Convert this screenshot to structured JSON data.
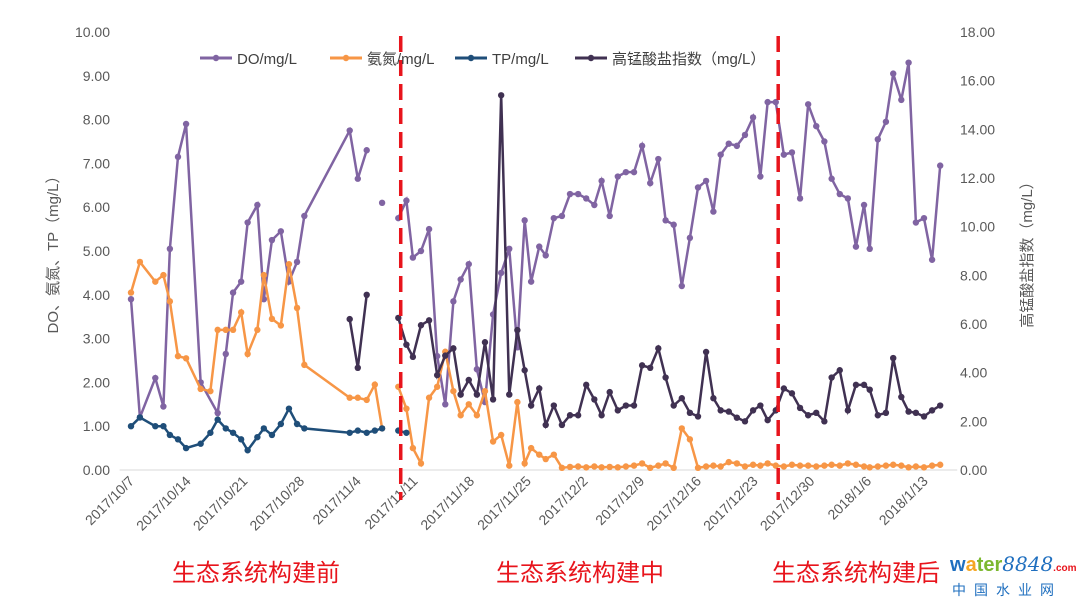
{
  "chart_data": {
    "type": "line",
    "x_unit": "days since 2017/10/7",
    "x_ticks": [
      0,
      7,
      14,
      21,
      28,
      35,
      42,
      49,
      56,
      63,
      70,
      77,
      84,
      91,
      98
    ],
    "x_tick_labels": [
      "2017/10/7",
      "2017/10/14",
      "2017/10/21",
      "2017/10/28",
      "2017/11/4",
      "2017/11/11",
      "2017/11/18",
      "2017/11/25",
      "2017/12/2",
      "2017/12/9",
      "2017/12/16",
      "2017/12/23",
      "2017/12/30",
      "2018/1/6",
      "2018/1/13"
    ],
    "xlim": [
      -1.4,
      102
    ],
    "ylabel": "DO、氨氮、TP（mg/L）",
    "ylim": [
      0,
      10
    ],
    "y_ticks": [
      "0.00",
      "1.00",
      "2.00",
      "3.00",
      "4.00",
      "5.00",
      "6.00",
      "7.00",
      "8.00",
      "9.00",
      "10.00"
    ],
    "y2label": "高锰酸盐指数（mg/L）",
    "y2lim": [
      0,
      18
    ],
    "y2_ticks": [
      "0.00",
      "2.00",
      "4.00",
      "6.00",
      "8.00",
      "10.00",
      "12.00",
      "14.00",
      "16.00",
      "18.00"
    ],
    "legend_position": "top",
    "phase_boundaries": [
      33.3,
      79.9
    ],
    "phase_labels": [
      "生态系统构建前",
      "生态系统构建中",
      "生态系统构建后"
    ],
    "series": [
      {
        "name": "DO/mg/L",
        "axis": "left",
        "color": "#8064a2",
        "points": [
          [
            0,
            3.9
          ],
          [
            1.1,
            1.2
          ],
          [
            3,
            2.1
          ],
          [
            4,
            1.45
          ],
          [
            4.8,
            5.05
          ],
          [
            5.8,
            7.15
          ],
          [
            6.8,
            7.9
          ],
          [
            8.6,
            2.0
          ],
          [
            10.7,
            1.3
          ],
          [
            11.7,
            2.65
          ],
          [
            12.6,
            4.05
          ],
          [
            13.6,
            4.3
          ],
          [
            14.4,
            5.65
          ],
          [
            15.6,
            6.05
          ],
          [
            16.4,
            3.9
          ],
          [
            17.4,
            5.25
          ],
          [
            18.5,
            5.45
          ],
          [
            19.5,
            4.3
          ],
          [
            20.5,
            4.75
          ],
          [
            21.4,
            5.8
          ],
          [
            27,
            7.75
          ],
          [
            28,
            6.65
          ],
          [
            29.1,
            7.3
          ],
          null,
          [
            31,
            6.1
          ],
          null,
          [
            33,
            5.75
          ],
          [
            34,
            6.15
          ],
          [
            34.8,
            4.85
          ],
          [
            35.8,
            5.0
          ],
          [
            36.8,
            5.5
          ],
          [
            37.8,
            2.6
          ],
          [
            38.8,
            1.5
          ],
          [
            39.8,
            3.85
          ],
          [
            40.7,
            4.35
          ],
          [
            41.7,
            4.7
          ],
          [
            42.7,
            2.3
          ],
          [
            43.7,
            1.55
          ],
          [
            44.7,
            3.55
          ],
          [
            45.7,
            4.5
          ],
          [
            46.7,
            5.05
          ],
          [
            47.7,
            2.8
          ],
          [
            48.6,
            5.7
          ],
          [
            49.4,
            4.3
          ],
          [
            50.4,
            5.1
          ],
          [
            51.2,
            4.9
          ],
          [
            52.2,
            5.75
          ],
          [
            53.2,
            5.8
          ],
          [
            54.2,
            6.3
          ],
          [
            55.2,
            6.3
          ],
          [
            56.2,
            6.2
          ],
          [
            57.2,
            6.05
          ],
          [
            58.1,
            6.6
          ],
          [
            59.1,
            5.8
          ],
          [
            60.1,
            6.7
          ],
          [
            61.1,
            6.8
          ],
          [
            62.1,
            6.8
          ],
          [
            63.1,
            7.4
          ],
          [
            64.1,
            6.55
          ],
          [
            65.1,
            7.1
          ],
          [
            66,
            5.7
          ],
          [
            67,
            5.6
          ],
          [
            68,
            4.2
          ],
          [
            69,
            5.3
          ],
          [
            70,
            6.45
          ],
          [
            71,
            6.6
          ],
          [
            71.9,
            5.9
          ],
          [
            72.8,
            7.2
          ],
          [
            73.8,
            7.45
          ],
          [
            74.8,
            7.4
          ],
          [
            75.8,
            7.65
          ],
          [
            76.8,
            8.05
          ],
          [
            77.7,
            6.7
          ],
          [
            78.6,
            8.4
          ],
          [
            79.6,
            8.4
          ],
          [
            80.6,
            7.2
          ],
          [
            81.6,
            7.25
          ],
          [
            82.6,
            6.2
          ],
          [
            83.6,
            8.35
          ],
          [
            84.6,
            7.85
          ],
          [
            85.6,
            7.5
          ],
          [
            86.5,
            6.65
          ],
          [
            87.5,
            6.3
          ],
          [
            88.5,
            6.2
          ],
          [
            89.5,
            5.1
          ],
          [
            90.5,
            6.05
          ],
          [
            91.2,
            5.05
          ],
          [
            92.2,
            7.55
          ],
          [
            93.2,
            7.95
          ],
          [
            94.1,
            9.05
          ],
          [
            95.1,
            8.45
          ],
          [
            96,
            9.3
          ],
          [
            96.9,
            5.65
          ],
          [
            97.9,
            5.75
          ],
          [
            98.9,
            4.8
          ],
          [
            99.9,
            6.95
          ]
        ]
      },
      {
        "name": "氨氮/mg/L",
        "axis": "left",
        "color": "#f79646",
        "points": [
          [
            0,
            4.05
          ],
          [
            1.1,
            4.75
          ],
          [
            3,
            4.3
          ],
          [
            4,
            4.45
          ],
          [
            4.8,
            3.85
          ],
          [
            5.8,
            2.6
          ],
          [
            6.8,
            2.55
          ],
          [
            8.6,
            1.85
          ],
          [
            9.8,
            1.8
          ],
          [
            10.7,
            3.2
          ],
          [
            11.7,
            3.2
          ],
          [
            12.6,
            3.2
          ],
          [
            13.6,
            3.6
          ],
          [
            14.4,
            2.65
          ],
          [
            15.6,
            3.2
          ],
          [
            16.4,
            4.45
          ],
          [
            17.4,
            3.45
          ],
          [
            18.5,
            3.3
          ],
          [
            19.5,
            4.7
          ],
          [
            20.5,
            3.7
          ],
          [
            21.4,
            2.4
          ],
          [
            27,
            1.65
          ],
          [
            28,
            1.65
          ],
          [
            29.1,
            1.6
          ],
          [
            30.1,
            1.95
          ],
          [
            31,
            0.95
          ],
          null,
          [
            33,
            1.9
          ],
          [
            34,
            1.4
          ],
          [
            34.8,
            0.5
          ],
          [
            35.8,
            0.15
          ],
          [
            36.8,
            1.65
          ],
          [
            37.8,
            1.9
          ],
          [
            38.8,
            2.7
          ],
          [
            39.8,
            1.8
          ],
          [
            40.7,
            1.25
          ],
          [
            41.7,
            1.5
          ],
          [
            42.7,
            1.25
          ],
          [
            43.7,
            1.8
          ],
          [
            44.7,
            0.65
          ],
          [
            45.7,
            0.8
          ],
          [
            46.7,
            0.1
          ],
          [
            47.7,
            1.55
          ],
          [
            48.6,
            0.15
          ],
          [
            49.4,
            0.5
          ],
          [
            50.4,
            0.35
          ],
          [
            51.2,
            0.25
          ],
          [
            52.2,
            0.35
          ],
          [
            53.2,
            0.05
          ],
          [
            54.2,
            0.07
          ],
          [
            55.2,
            0.08
          ],
          [
            56.2,
            0.06
          ],
          [
            57.2,
            0.08
          ],
          [
            58.1,
            0.06
          ],
          [
            59.1,
            0.07
          ],
          [
            60.1,
            0.06
          ],
          [
            61.1,
            0.08
          ],
          [
            62.1,
            0.1
          ],
          [
            63.1,
            0.15
          ],
          [
            64.1,
            0.05
          ],
          [
            65.1,
            0.1
          ],
          [
            66,
            0.15
          ],
          [
            67,
            0.05
          ],
          [
            68,
            0.95
          ],
          [
            69,
            0.7
          ],
          [
            70,
            0.05
          ],
          [
            71,
            0.08
          ],
          [
            71.9,
            0.1
          ],
          [
            72.8,
            0.08
          ],
          [
            73.8,
            0.18
          ],
          [
            74.8,
            0.15
          ],
          [
            75.8,
            0.08
          ],
          [
            76.8,
            0.12
          ],
          [
            77.7,
            0.1
          ],
          [
            78.6,
            0.15
          ],
          [
            79.6,
            0.1
          ],
          [
            80.6,
            0.08
          ],
          [
            81.6,
            0.12
          ],
          [
            82.6,
            0.1
          ],
          [
            83.6,
            0.1
          ],
          [
            84.6,
            0.08
          ],
          [
            85.6,
            0.1
          ],
          [
            86.5,
            0.12
          ],
          [
            87.5,
            0.1
          ],
          [
            88.5,
            0.15
          ],
          [
            89.5,
            0.12
          ],
          [
            90.5,
            0.08
          ],
          [
            91.2,
            0.06
          ],
          [
            92.2,
            0.08
          ],
          [
            93.2,
            0.1
          ],
          [
            94.1,
            0.12
          ],
          [
            95.1,
            0.1
          ],
          [
            96,
            0.06
          ],
          [
            96.9,
            0.08
          ],
          [
            97.9,
            0.06
          ],
          [
            98.9,
            0.1
          ],
          [
            99.9,
            0.12
          ]
        ]
      },
      {
        "name": "TP/mg/L",
        "axis": "left",
        "color": "#1f4e79",
        "points": [
          [
            0,
            1.0
          ],
          [
            1.1,
            1.2
          ],
          [
            3,
            1.0
          ],
          [
            4,
            1.0
          ],
          [
            4.8,
            0.8
          ],
          [
            5.8,
            0.7
          ],
          [
            6.8,
            0.5
          ],
          [
            8.6,
            0.6
          ],
          [
            9.8,
            0.85
          ],
          [
            10.7,
            1.15
          ],
          [
            11.7,
            0.95
          ],
          [
            12.6,
            0.85
          ],
          [
            13.6,
            0.7
          ],
          [
            14.4,
            0.45
          ],
          [
            15.6,
            0.75
          ],
          [
            16.4,
            0.95
          ],
          [
            17.4,
            0.8
          ],
          [
            18.5,
            1.05
          ],
          [
            19.5,
            1.4
          ],
          [
            20.5,
            1.05
          ],
          [
            21.4,
            0.95
          ],
          [
            27,
            0.85
          ],
          [
            28,
            0.9
          ],
          [
            29.1,
            0.85
          ],
          [
            30.1,
            0.9
          ],
          [
            31,
            0.95
          ],
          null,
          [
            33,
            0.9
          ],
          [
            34,
            0.85
          ]
        ]
      },
      {
        "name": "高锰酸盐指数（mg/L）",
        "axis": "right",
        "color": "#403152",
        "points": [
          [
            27,
            6.2
          ],
          [
            28,
            4.2
          ],
          [
            29.1,
            7.2
          ],
          null,
          [
            33,
            6.25
          ],
          [
            34,
            5.15
          ],
          [
            34.8,
            4.65
          ],
          [
            35.8,
            5.95
          ],
          [
            36.8,
            6.15
          ],
          [
            37.8,
            3.9
          ],
          [
            38.8,
            4.7
          ],
          [
            39.8,
            5.0
          ],
          [
            40.7,
            3.1
          ],
          [
            41.7,
            3.7
          ],
          [
            42.7,
            3.1
          ],
          [
            43.7,
            5.25
          ],
          [
            44.7,
            2.9
          ],
          [
            45.7,
            15.4
          ],
          [
            46.7,
            3.1
          ],
          [
            47.7,
            5.75
          ],
          [
            48.6,
            4.1
          ],
          [
            49.4,
            2.65
          ],
          [
            50.4,
            3.35
          ],
          [
            51.2,
            1.85
          ],
          [
            52.2,
            2.65
          ],
          [
            53.2,
            1.85
          ],
          [
            54.2,
            2.25
          ],
          [
            55.2,
            2.25
          ],
          [
            56.2,
            3.5
          ],
          [
            57.2,
            2.9
          ],
          [
            58.1,
            2.25
          ],
          [
            59.1,
            3.2
          ],
          [
            60.1,
            2.45
          ],
          [
            61.1,
            2.65
          ],
          [
            62.1,
            2.65
          ],
          [
            63.1,
            4.3
          ],
          [
            64.1,
            4.2
          ],
          [
            65.1,
            5.0
          ],
          [
            66,
            3.8
          ],
          [
            67,
            2.65
          ],
          [
            68,
            2.95
          ],
          [
            69,
            2.35
          ],
          [
            70,
            2.2
          ],
          [
            71,
            4.85
          ],
          [
            71.9,
            2.95
          ],
          [
            72.8,
            2.45
          ],
          [
            73.8,
            2.4
          ],
          [
            74.8,
            2.15
          ],
          [
            75.8,
            2.0
          ],
          [
            76.8,
            2.45
          ],
          [
            77.7,
            2.65
          ],
          [
            78.6,
            2.05
          ],
          [
            79.6,
            2.45
          ],
          [
            80.6,
            3.35
          ],
          [
            81.6,
            3.15
          ],
          [
            82.6,
            2.55
          ],
          [
            83.6,
            2.25
          ],
          [
            84.6,
            2.35
          ],
          [
            85.6,
            2.0
          ],
          [
            86.5,
            3.8
          ],
          [
            87.5,
            4.1
          ],
          [
            88.5,
            2.45
          ],
          [
            89.5,
            3.5
          ],
          [
            90.5,
            3.5
          ],
          [
            91.2,
            3.3
          ],
          [
            92.2,
            2.25
          ],
          [
            93.2,
            2.35
          ],
          [
            94.1,
            4.6
          ],
          [
            95.1,
            3.0
          ],
          [
            96,
            2.4
          ],
          [
            96.9,
            2.35
          ],
          [
            97.9,
            2.2
          ],
          [
            98.9,
            2.45
          ],
          [
            99.9,
            2.65
          ]
        ]
      }
    ]
  },
  "watermark": {
    "brand": "water8848.com",
    "subtitle": "中国水业网"
  }
}
